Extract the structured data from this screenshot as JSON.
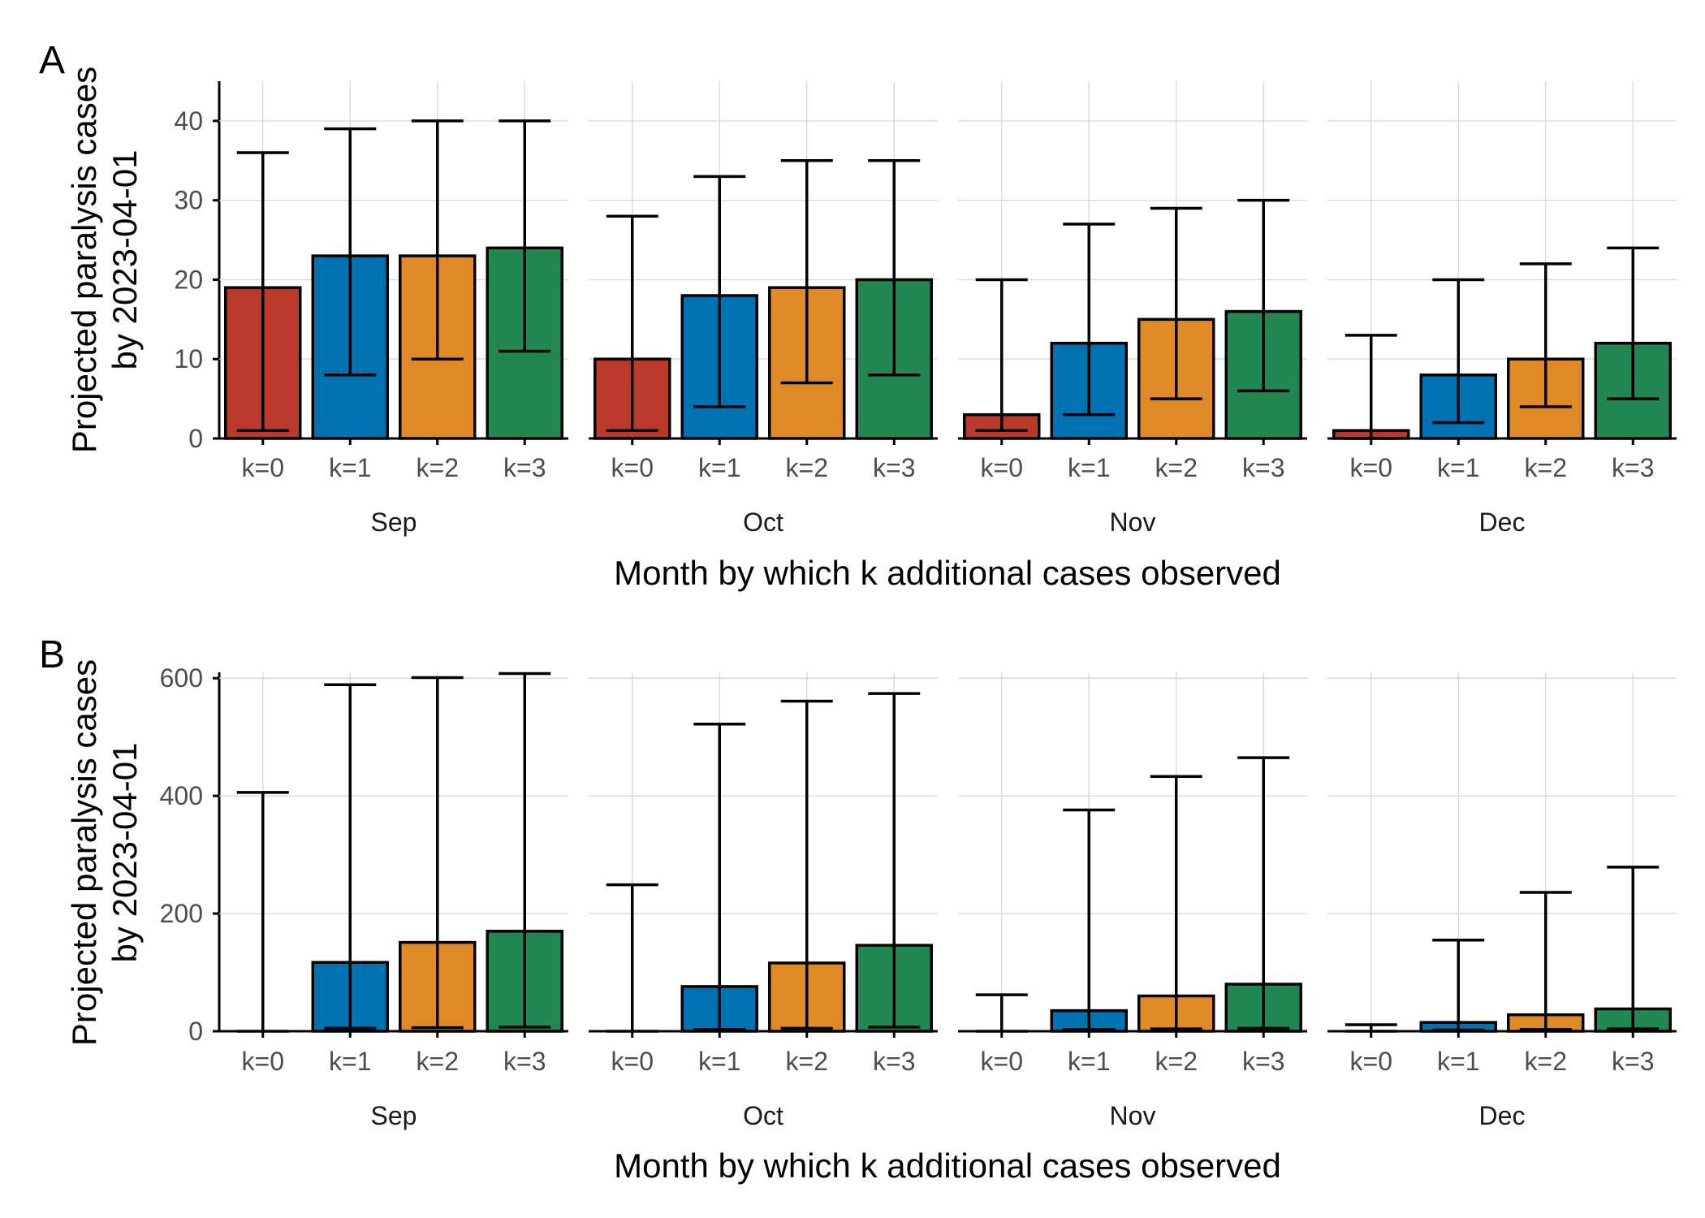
{
  "colors": {
    "k=0": "#B93A2B",
    "k=1": "#0072B2",
    "k=2": "#E08A27",
    "k=3": "#228750"
  },
  "chart_data": [
    {
      "tag": "A",
      "type": "bar",
      "facets": [
        "Sep",
        "Oct",
        "Nov",
        "Dec"
      ],
      "categories": [
        "k=0",
        "k=1",
        "k=2",
        "k=3"
      ],
      "xlabel": "Month by which k additional cases observed",
      "ylabel": [
        "Projected paralysis cases",
        "by 2023-04-01"
      ],
      "ylim": [
        0,
        45
      ],
      "yticks": [
        0,
        10,
        20,
        30,
        40
      ],
      "grid": true,
      "values": {
        "Sep": [
          19,
          23,
          23,
          24
        ],
        "Oct": [
          10,
          18,
          19,
          20
        ],
        "Nov": [
          3,
          12,
          15,
          16
        ],
        "Dec": [
          1,
          8,
          10,
          12
        ]
      },
      "lower": {
        "Sep": [
          1,
          8,
          10,
          11
        ],
        "Oct": [
          1,
          4,
          7,
          8
        ],
        "Nov": [
          1,
          3,
          5,
          6
        ],
        "Dec": [
          0,
          2,
          4,
          5
        ]
      },
      "upper": {
        "Sep": [
          36,
          39,
          40,
          40
        ],
        "Oct": [
          28,
          33,
          35,
          35
        ],
        "Nov": [
          20,
          27,
          29,
          30
        ],
        "Dec": [
          13,
          20,
          22,
          24
        ]
      }
    },
    {
      "tag": "B",
      "type": "bar",
      "facets": [
        "Sep",
        "Oct",
        "Nov",
        "Dec"
      ],
      "categories": [
        "k=0",
        "k=1",
        "k=2",
        "k=3"
      ],
      "xlabel": "Month by which k additional cases observed",
      "ylabel": [
        "Projected paralysis cases",
        "by 2023-04-01"
      ],
      "ylim": [
        0,
        610
      ],
      "yticks": [
        0,
        200,
        400,
        600
      ],
      "grid": true,
      "values": {
        "Sep": [
          0,
          117,
          151,
          170
        ],
        "Oct": [
          0,
          76,
          116,
          146
        ],
        "Nov": [
          0,
          35,
          60,
          80
        ],
        "Dec": [
          0,
          15,
          28,
          38
        ]
      },
      "lower": {
        "Sep": [
          0,
          5,
          6,
          7
        ],
        "Oct": [
          0,
          3,
          5,
          7
        ],
        "Nov": [
          0,
          3,
          4,
          5
        ],
        "Dec": [
          0,
          2,
          3,
          4
        ]
      },
      "upper": {
        "Sep": [
          406,
          589,
          601,
          608
        ],
        "Oct": [
          249,
          522,
          561,
          574
        ],
        "Nov": [
          62,
          376,
          433,
          465
        ],
        "Dec": [
          11,
          155,
          236,
          279
        ]
      }
    }
  ]
}
